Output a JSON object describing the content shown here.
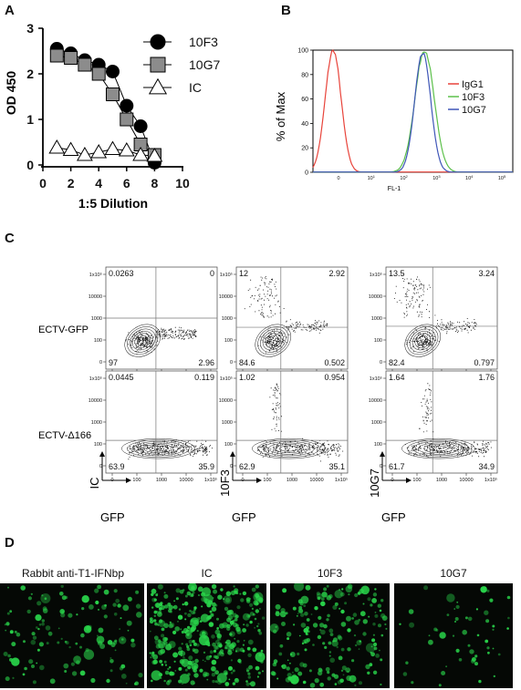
{
  "figure": {
    "panel_letters": [
      "A",
      "B",
      "C",
      "D"
    ]
  },
  "chart_data": [
    {
      "panel": "A",
      "type": "line",
      "xlabel": "1:5 Dilution",
      "ylabel": "OD 450",
      "xlim": [
        0,
        10
      ],
      "ylim": [
        0,
        3
      ],
      "xticks": [
        "0",
        "2",
        "4",
        "6",
        "8",
        "10"
      ],
      "yticks": [
        "0",
        "1",
        "2",
        "3"
      ],
      "legend_position": "right",
      "series": [
        {
          "name": "10F3",
          "marker": "circle",
          "color": "#000000",
          "x": [
            1,
            2,
            3,
            4,
            5,
            6,
            7,
            8
          ],
          "y": [
            2.55,
            2.45,
            2.3,
            2.2,
            2.05,
            1.3,
            0.85,
            0.05
          ]
        },
        {
          "name": "10G7",
          "marker": "square",
          "color": "#8c8c8c",
          "x": [
            1,
            2,
            3,
            4,
            5,
            6,
            7,
            8
          ],
          "y": [
            2.4,
            2.35,
            2.2,
            2.0,
            1.55,
            1.0,
            0.45,
            0.22
          ]
        },
        {
          "name": "IC",
          "marker": "triangle",
          "color": "#ffffff",
          "x": [
            1,
            2,
            3,
            4,
            5,
            6,
            7,
            8
          ],
          "y": [
            0.38,
            0.33,
            0.22,
            0.28,
            0.35,
            0.32,
            0.22,
            0.2
          ]
        }
      ]
    },
    {
      "panel": "B",
      "type": "line",
      "subtype": "flow-histogram",
      "xlabel": "FL-1",
      "ylabel": "% of Max",
      "ylim": [
        0,
        100
      ],
      "xscale": "log",
      "xlim": [
        1,
        100000
      ],
      "xticks": [
        "0",
        "10 1",
        "10 2",
        "10 3",
        "10 4",
        "10 5"
      ],
      "yticks": [
        "0",
        "20",
        "40",
        "60",
        "80",
        "100"
      ],
      "legend_position": "right",
      "series": [
        {
          "name": "IgG1",
          "color": "#e8433a",
          "peak_fl1": 3.2,
          "peak_pct": 100
        },
        {
          "name": "10F3",
          "color": "#5cc04a",
          "peak_fl1": 620,
          "peak_pct": 100
        },
        {
          "name": "10G7",
          "color": "#3f56b8",
          "peak_fl1": 560,
          "peak_pct": 98
        }
      ]
    }
  ],
  "flow": {
    "panel": "C",
    "row_labels": [
      "ECTV-GFP",
      "ECTV-Δ166"
    ],
    "x_axis_label": "GFP",
    "y_axis_labels": [
      "IC",
      "10F3",
      "10G7"
    ],
    "y_ticks": [
      "1x10⁵",
      "10000",
      "1000",
      "100",
      "0"
    ],
    "x_ticks": [
      "0",
      "100",
      "1000",
      "10000",
      "1x10⁵"
    ],
    "plots": [
      {
        "row": 0,
        "col": 0,
        "q": [
          "0.0263",
          "0",
          "97",
          "2.96"
        ]
      },
      {
        "row": 0,
        "col": 1,
        "q": [
          "12",
          "2.92",
          "84.6",
          "0.502"
        ]
      },
      {
        "row": 0,
        "col": 2,
        "q": [
          "13.5",
          "3.24",
          "82.4",
          "0.797"
        ]
      },
      {
        "row": 1,
        "col": 0,
        "q": [
          "0.0445",
          "0.119",
          "63.9",
          "35.9"
        ]
      },
      {
        "row": 1,
        "col": 1,
        "q": [
          "1.02",
          "0.954",
          "62.9",
          "35.1"
        ]
      },
      {
        "row": 1,
        "col": 2,
        "q": [
          "1.64",
          "1.76",
          "61.7",
          "34.9"
        ]
      }
    ]
  },
  "microscopy": {
    "panel": "D",
    "titles": [
      "Rabbit anti-T1-IFNbp",
      "IC",
      "10F3",
      "10G7"
    ],
    "fluorescence_color": "#29d44a",
    "relative_density": [
      0.28,
      0.9,
      0.45,
      0.1
    ]
  }
}
